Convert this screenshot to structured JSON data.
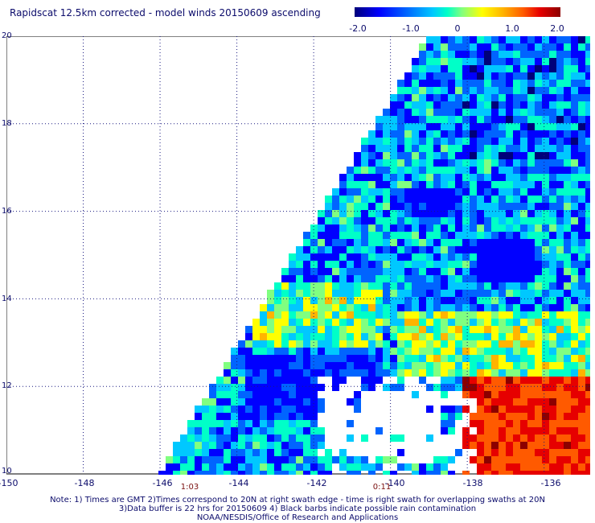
{
  "title": "Rapidscat 12.5km corrected - model winds 20150609 ascending",
  "colorbar": {
    "ticks": [
      "-2.0",
      "-1.0",
      "0",
      "1.0",
      "2.0"
    ],
    "colors": [
      "#00007a",
      "#0000ff",
      "#0064ff",
      "#00c8ff",
      "#00ffc8",
      "#80ff80",
      "#ffff00",
      "#ffb400",
      "#ff5a00",
      "#e60000",
      "#8c0000"
    ]
  },
  "map": {
    "lat_labels": [
      "20",
      "18",
      "16",
      "14",
      "12",
      "10"
    ],
    "lon_labels": [
      "-150",
      "-148",
      "-146",
      "-144",
      "-142",
      "-140",
      "-138",
      "-136"
    ],
    "lat_range": [
      10,
      20
    ],
    "lon_range": [
      -150,
      -134.8
    ],
    "swath_times": [
      {
        "label": "1:03",
        "lon": -145.4
      },
      {
        "label": "0:11",
        "lon": -140.6
      }
    ]
  },
  "notes": {
    "line1": "Note: 1) Times are GMT 2)Times correspond to 20N at right swath edge - time is right swath for overlapping swaths at 20N",
    "line2": "3)Data buffer is 22 hrs for 20150609 4) Black barbs indicate possible rain contamination",
    "line3": "NOAA/NESDIS/Office of Research and Applications"
  }
}
